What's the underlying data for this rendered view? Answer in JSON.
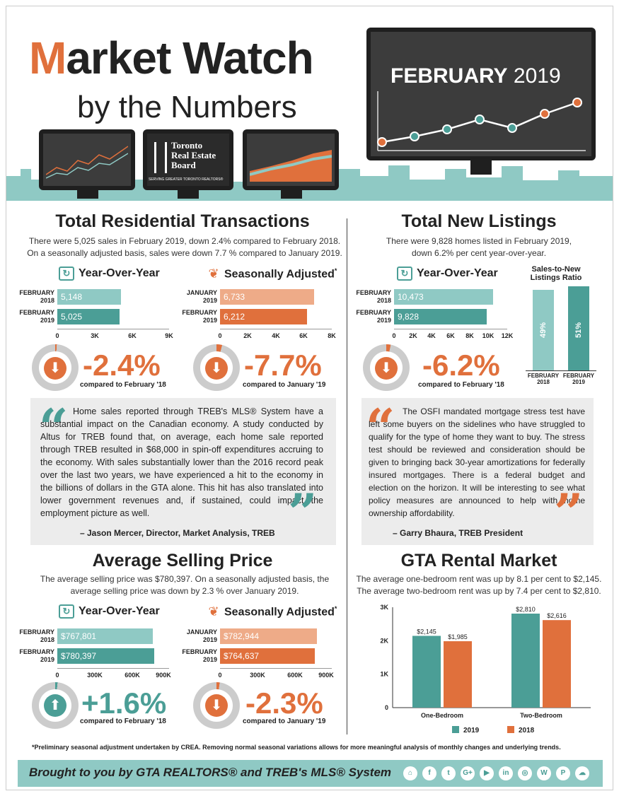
{
  "header": {
    "title_m": "M",
    "title_rest": "arket Watch",
    "subtitle": "by the Numbers",
    "month": "FEBRUARY",
    "year": "2019",
    "treb_line1": "Toronto",
    "treb_line2": "Real Estate",
    "treb_line3": "Board",
    "treb_tagline": "SERVING GREATER TORONTO REALTORS®"
  },
  "transactions": {
    "title": "Total Residential Transactions",
    "desc1": "There were 5,025 sales in February 2019, down 2.4% compared to February 2018.",
    "desc2": "On a seasonally adjusted basis, sales were down 7.7 % compared to January 2019.",
    "yoy": {
      "heading": "Year-Over-Year",
      "label1": "FEBRUARY\n2018",
      "value1": "5,148",
      "num1": 5148,
      "label2": "FEBRUARY\n2019",
      "value2": "5,025",
      "num2": 5025,
      "max": 9000,
      "ticks": [
        "0",
        "3K",
        "6K",
        "9K"
      ],
      "pct": "-2.4%",
      "compare": "compared to February '18"
    },
    "sa": {
      "heading": "Seasonally Adjusted",
      "mark": "*",
      "label1": "JANUARY\n2019",
      "value1": "6,733",
      "num1": 6733,
      "label2": "FEBRUARY\n2019",
      "value2": "6,212",
      "num2": 6212,
      "max": 8000,
      "ticks": [
        "0",
        "2K",
        "4K",
        "6K",
        "8K"
      ],
      "pct": "-7.7%",
      "compare": "compared to January '19"
    }
  },
  "listings": {
    "title": "Total New Listings",
    "desc1": "There were 9,828 homes listed in February 2019,",
    "desc2": "down 6.2% per cent year-over-year.",
    "yoy": {
      "heading": "Year-Over-Year",
      "label1": "FEBRUARY\n2018",
      "value1": "10,473",
      "num1": 10473,
      "label2": "FEBRUARY\n2019",
      "value2": "9,828",
      "num2": 9828,
      "max": 12000,
      "ticks": [
        "0",
        "2K",
        "4K",
        "6K",
        "8K",
        "10K",
        "12K"
      ],
      "pct": "-6.2%",
      "compare": "compared to February '18"
    },
    "ratio": {
      "heading": "Sales-to-New Listings Ratio",
      "label1": "FEBRUARY\n2018",
      "value1": "49%",
      "label2": "FEBRUARY\n2019",
      "value2": "51%"
    }
  },
  "quote1": {
    "text": "Home sales reported through TREB's MLS® System have a substantial impact on the Canadian economy. A study conducted by Altus for TREB found that, on average, each home sale reported through TREB resulted in $68,000 in spin-off expenditures accruing to the economy. With sales substantially lower than the 2016 record peak over the last two years, we have experienced a hit to the economy in the billions of dollars in the GTA alone. This hit has also translated into lower government revenues and, if sustained, could impact the employment picture as well.",
    "author": "– Jason Mercer, Director, Market Analysis, TREB"
  },
  "quote2": {
    "text": "The OSFI mandated mortgage stress test have left some buyers on the sidelines who have struggled to qualify for the type of home they want to buy. The stress test should be reviewed and consideration should be given to bringing back 30-year amortizations for federally insured mortgages. There is a federal budget and election on the horizon. It will be interesting to see what policy measures are announced to help with home ownership affordability.",
    "author": "– Garry Bhaura, TREB President"
  },
  "price": {
    "title": "Average Selling Price",
    "desc1": "The average selling price was $780,397. On a seasonally adjusted basis, the",
    "desc2": "average selling price was down by 2.3 % over January 2019.",
    "yoy": {
      "heading": "Year-Over-Year",
      "label1": "FEBRUARY\n2018",
      "value1": "$767,801",
      "num1": 767801,
      "label2": "FEBRUARY\n2019",
      "value2": "$780,397",
      "num2": 780397,
      "max": 900000,
      "ticks": [
        "0",
        "300K",
        "600K",
        "900K"
      ],
      "pct": "+1.6%",
      "compare": "compared to February '18"
    },
    "sa": {
      "heading": "Seasonally Adjusted",
      "mark": "*",
      "label1": "JANUARY\n2019",
      "value1": "$782,944",
      "num1": 782944,
      "label2": "FEBRUARY\n2019",
      "value2": "$764,637",
      "num2": 764637,
      "max": 900000,
      "ticks": [
        "0",
        "300K",
        "600K",
        "900K"
      ],
      "pct": "-2.3%",
      "compare": "compared to January '19"
    }
  },
  "rental": {
    "title": "GTA Rental Market",
    "desc1": "The average one-bedroom rent was up by 8.1 per cent to $2,145.",
    "desc2": "The average two-bedroom rent was up by 7.4 per cent to $2,810."
  },
  "chart_data": {
    "type": "bar",
    "categories": [
      "One-Bedroom",
      "Two-Bedroom"
    ],
    "series": [
      {
        "name": "2019",
        "values": [
          2145,
          2810
        ],
        "labels": [
          "$2,145",
          "$2,810"
        ]
      },
      {
        "name": "2018",
        "values": [
          1985,
          2616
        ],
        "labels": [
          "$1,985",
          "$2,616"
        ]
      }
    ],
    "ylim": [
      0,
      3000
    ],
    "yticks": [
      "0",
      "1K",
      "2K",
      "3K"
    ],
    "colors": [
      "#4b9e96",
      "#e0703c"
    ]
  },
  "footnote": "*Preliminary seasonal adjustment undertaken by CREA. Removing normal seasonal variations allows for more meaningful analysis of monthly changes and underlying trends.",
  "footer": {
    "text": "Brought to you by GTA REALTORS® and TREB's MLS® System",
    "icons": [
      "tower-icon",
      "facebook-icon",
      "twitter-icon",
      "google-plus-icon",
      "youtube-icon",
      "linkedin-icon",
      "instagram-icon",
      "wordpress-icon",
      "pinterest-icon",
      "soundcloud-icon"
    ],
    "glyphs": [
      "⌂",
      "f",
      "t",
      "G+",
      "▶",
      "in",
      "◎",
      "W",
      "P",
      "☁"
    ]
  },
  "colors": {
    "teal": "#4b9e96",
    "light_teal": "#8fc9c4",
    "orange": "#e0703c",
    "light_orange": "#eeab88"
  }
}
